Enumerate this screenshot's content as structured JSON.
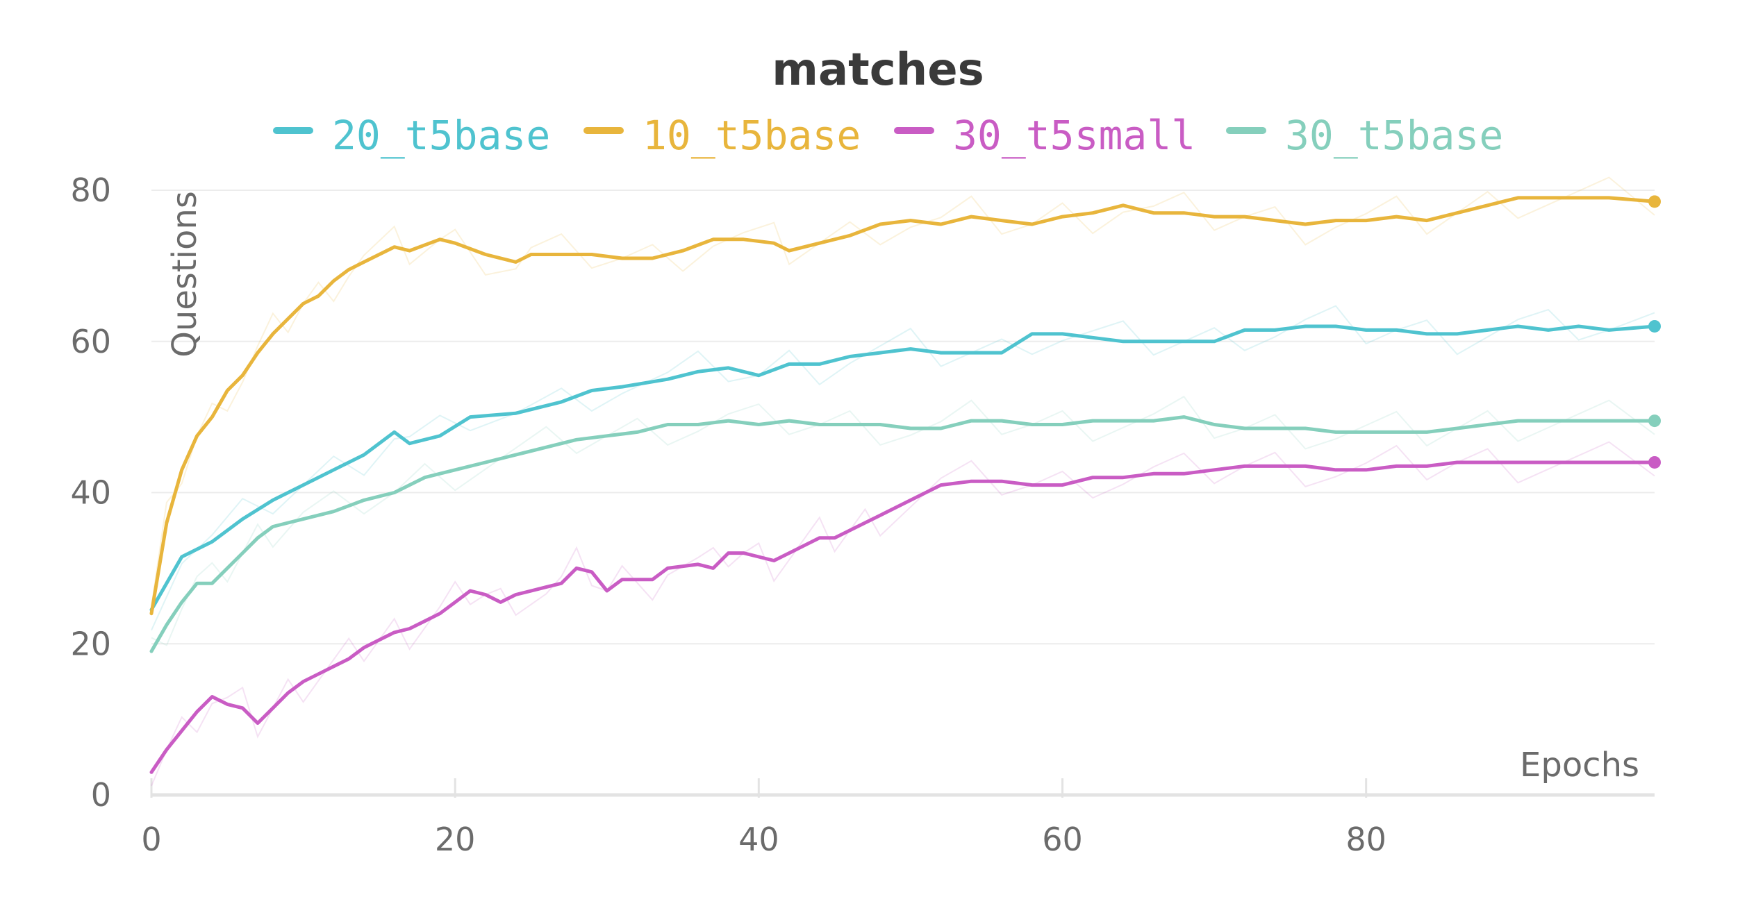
{
  "chart_data": {
    "type": "line",
    "title": "matches",
    "xlabel": "Epochs",
    "ylabel": "Questions",
    "xlim": [
      0,
      99
    ],
    "ylim": [
      0,
      80
    ],
    "xticks": [
      0,
      20,
      40,
      60,
      80
    ],
    "yticks": [
      0,
      20,
      40,
      60,
      80
    ],
    "grid": true,
    "legend_position": "top",
    "series": [
      {
        "name": "20_t5base",
        "color": "#4fc3cf",
        "points": [
          [
            0,
            24.5
          ],
          [
            2,
            31.5
          ],
          [
            4,
            33.5
          ],
          [
            6,
            36.5
          ],
          [
            8,
            39
          ],
          [
            10,
            41
          ],
          [
            12,
            43
          ],
          [
            14,
            45
          ],
          [
            16,
            48
          ],
          [
            17,
            46.5
          ],
          [
            19,
            47.5
          ],
          [
            21,
            50
          ],
          [
            24,
            50.5
          ],
          [
            27,
            52
          ],
          [
            29,
            53.5
          ],
          [
            31,
            54
          ],
          [
            34,
            55
          ],
          [
            36,
            56
          ],
          [
            38,
            56.5
          ],
          [
            40,
            55.5
          ],
          [
            42,
            57
          ],
          [
            44,
            57
          ],
          [
            46,
            58
          ],
          [
            48,
            58.5
          ],
          [
            50,
            59
          ],
          [
            52,
            58.5
          ],
          [
            54,
            58.5
          ],
          [
            56,
            58.5
          ],
          [
            58,
            61
          ],
          [
            60,
            61
          ],
          [
            62,
            60.5
          ],
          [
            64,
            60
          ],
          [
            66,
            60
          ],
          [
            68,
            60
          ],
          [
            70,
            60
          ],
          [
            72,
            61.5
          ],
          [
            74,
            61.5
          ],
          [
            76,
            62
          ],
          [
            78,
            62
          ],
          [
            80,
            61.5
          ],
          [
            82,
            61.5
          ],
          [
            84,
            61
          ],
          [
            86,
            61
          ],
          [
            88,
            61.5
          ],
          [
            90,
            62
          ],
          [
            92,
            61.5
          ],
          [
            94,
            62
          ],
          [
            96,
            61.5
          ],
          [
            99,
            62
          ]
        ]
      },
      {
        "name": "10_t5base",
        "color": "#e8b53c",
        "points": [
          [
            0,
            24
          ],
          [
            1,
            36
          ],
          [
            2,
            43
          ],
          [
            3,
            47.5
          ],
          [
            4,
            50
          ],
          [
            5,
            53.5
          ],
          [
            6,
            55.5
          ],
          [
            7,
            58.5
          ],
          [
            8,
            61
          ],
          [
            9,
            63
          ],
          [
            10,
            65
          ],
          [
            11,
            66
          ],
          [
            12,
            68
          ],
          [
            13,
            69.5
          ],
          [
            14,
            70.5
          ],
          [
            16,
            72.5
          ],
          [
            17,
            72
          ],
          [
            19,
            73.5
          ],
          [
            20,
            73
          ],
          [
            22,
            71.5
          ],
          [
            24,
            70.5
          ],
          [
            25,
            71.5
          ],
          [
            27,
            71.5
          ],
          [
            29,
            71.5
          ],
          [
            31,
            71
          ],
          [
            33,
            71
          ],
          [
            35,
            72
          ],
          [
            37,
            73.5
          ],
          [
            39,
            73.5
          ],
          [
            41,
            73
          ],
          [
            42,
            72
          ],
          [
            44,
            73
          ],
          [
            46,
            74
          ],
          [
            48,
            75.5
          ],
          [
            50,
            76
          ],
          [
            52,
            75.5
          ],
          [
            54,
            76.5
          ],
          [
            56,
            76
          ],
          [
            58,
            75.5
          ],
          [
            60,
            76.5
          ],
          [
            62,
            77
          ],
          [
            64,
            78
          ],
          [
            66,
            77
          ],
          [
            68,
            77
          ],
          [
            70,
            76.5
          ],
          [
            72,
            76.5
          ],
          [
            74,
            76
          ],
          [
            76,
            75.5
          ],
          [
            78,
            76
          ],
          [
            80,
            76
          ],
          [
            82,
            76.5
          ],
          [
            84,
            76
          ],
          [
            86,
            77
          ],
          [
            88,
            78
          ],
          [
            90,
            79
          ],
          [
            92,
            79
          ],
          [
            94,
            79
          ],
          [
            96,
            79
          ],
          [
            99,
            78.5
          ]
        ]
      },
      {
        "name": "30_t5small",
        "color": "#c95cc4",
        "points": [
          [
            0,
            3
          ],
          [
            1,
            6
          ],
          [
            2,
            8.5
          ],
          [
            3,
            11
          ],
          [
            4,
            13
          ],
          [
            5,
            12
          ],
          [
            6,
            11.5
          ],
          [
            7,
            9.5
          ],
          [
            8,
            11.5
          ],
          [
            9,
            13.5
          ],
          [
            10,
            15
          ],
          [
            11,
            16
          ],
          [
            12,
            17
          ],
          [
            13,
            18
          ],
          [
            14,
            19.5
          ],
          [
            15,
            20.5
          ],
          [
            16,
            21.5
          ],
          [
            17,
            22
          ],
          [
            18,
            23
          ],
          [
            19,
            24
          ],
          [
            20,
            25.5
          ],
          [
            21,
            27
          ],
          [
            22,
            26.5
          ],
          [
            23,
            25.5
          ],
          [
            24,
            26.5
          ],
          [
            26,
            27.5
          ],
          [
            27,
            28
          ],
          [
            28,
            30
          ],
          [
            29,
            29.5
          ],
          [
            30,
            27
          ],
          [
            31,
            28.5
          ],
          [
            33,
            28.5
          ],
          [
            34,
            30
          ],
          [
            36,
            30.5
          ],
          [
            37,
            30
          ],
          [
            38,
            32
          ],
          [
            39,
            32
          ],
          [
            40,
            31.5
          ],
          [
            41,
            31
          ],
          [
            42,
            32
          ],
          [
            43,
            33
          ],
          [
            44,
            34
          ],
          [
            45,
            34
          ],
          [
            46,
            35
          ],
          [
            47,
            36
          ],
          [
            48,
            37
          ],
          [
            50,
            39
          ],
          [
            52,
            41
          ],
          [
            54,
            41.5
          ],
          [
            56,
            41.5
          ],
          [
            58,
            41
          ],
          [
            60,
            41
          ],
          [
            62,
            42
          ],
          [
            64,
            42
          ],
          [
            66,
            42.5
          ],
          [
            68,
            42.5
          ],
          [
            70,
            43
          ],
          [
            72,
            43.5
          ],
          [
            74,
            43.5
          ],
          [
            76,
            43.5
          ],
          [
            78,
            43
          ],
          [
            80,
            43
          ],
          [
            82,
            43.5
          ],
          [
            84,
            43.5
          ],
          [
            86,
            44
          ],
          [
            88,
            44
          ],
          [
            90,
            44
          ],
          [
            92,
            44
          ],
          [
            94,
            44
          ],
          [
            96,
            44
          ],
          [
            99,
            44
          ]
        ]
      },
      {
        "name": "30_t5base",
        "color": "#85cfbc",
        "points": [
          [
            0,
            19
          ],
          [
            1,
            22.5
          ],
          [
            2,
            25.5
          ],
          [
            3,
            28
          ],
          [
            4,
            28
          ],
          [
            5,
            30
          ],
          [
            6,
            32
          ],
          [
            7,
            34
          ],
          [
            8,
            35.5
          ],
          [
            9,
            36
          ],
          [
            10,
            36.5
          ],
          [
            12,
            37.5
          ],
          [
            14,
            39
          ],
          [
            16,
            40
          ],
          [
            18,
            42
          ],
          [
            20,
            43
          ],
          [
            22,
            44
          ],
          [
            24,
            45
          ],
          [
            26,
            46
          ],
          [
            28,
            47
          ],
          [
            30,
            47.5
          ],
          [
            32,
            48
          ],
          [
            34,
            49
          ],
          [
            36,
            49
          ],
          [
            38,
            49.5
          ],
          [
            40,
            49
          ],
          [
            42,
            49.5
          ],
          [
            44,
            49
          ],
          [
            46,
            49
          ],
          [
            48,
            49
          ],
          [
            50,
            48.5
          ],
          [
            52,
            48.5
          ],
          [
            54,
            49.5
          ],
          [
            56,
            49.5
          ],
          [
            58,
            49
          ],
          [
            60,
            49
          ],
          [
            62,
            49.5
          ],
          [
            64,
            49.5
          ],
          [
            66,
            49.5
          ],
          [
            68,
            50
          ],
          [
            70,
            49
          ],
          [
            72,
            48.5
          ],
          [
            74,
            48.5
          ],
          [
            76,
            48.5
          ],
          [
            78,
            48
          ],
          [
            80,
            48
          ],
          [
            82,
            48
          ],
          [
            84,
            48
          ],
          [
            86,
            48.5
          ],
          [
            88,
            49
          ],
          [
            90,
            49.5
          ],
          [
            92,
            49.5
          ],
          [
            94,
            49.5
          ],
          [
            96,
            49.5
          ],
          [
            99,
            49.5
          ]
        ]
      }
    ]
  }
}
